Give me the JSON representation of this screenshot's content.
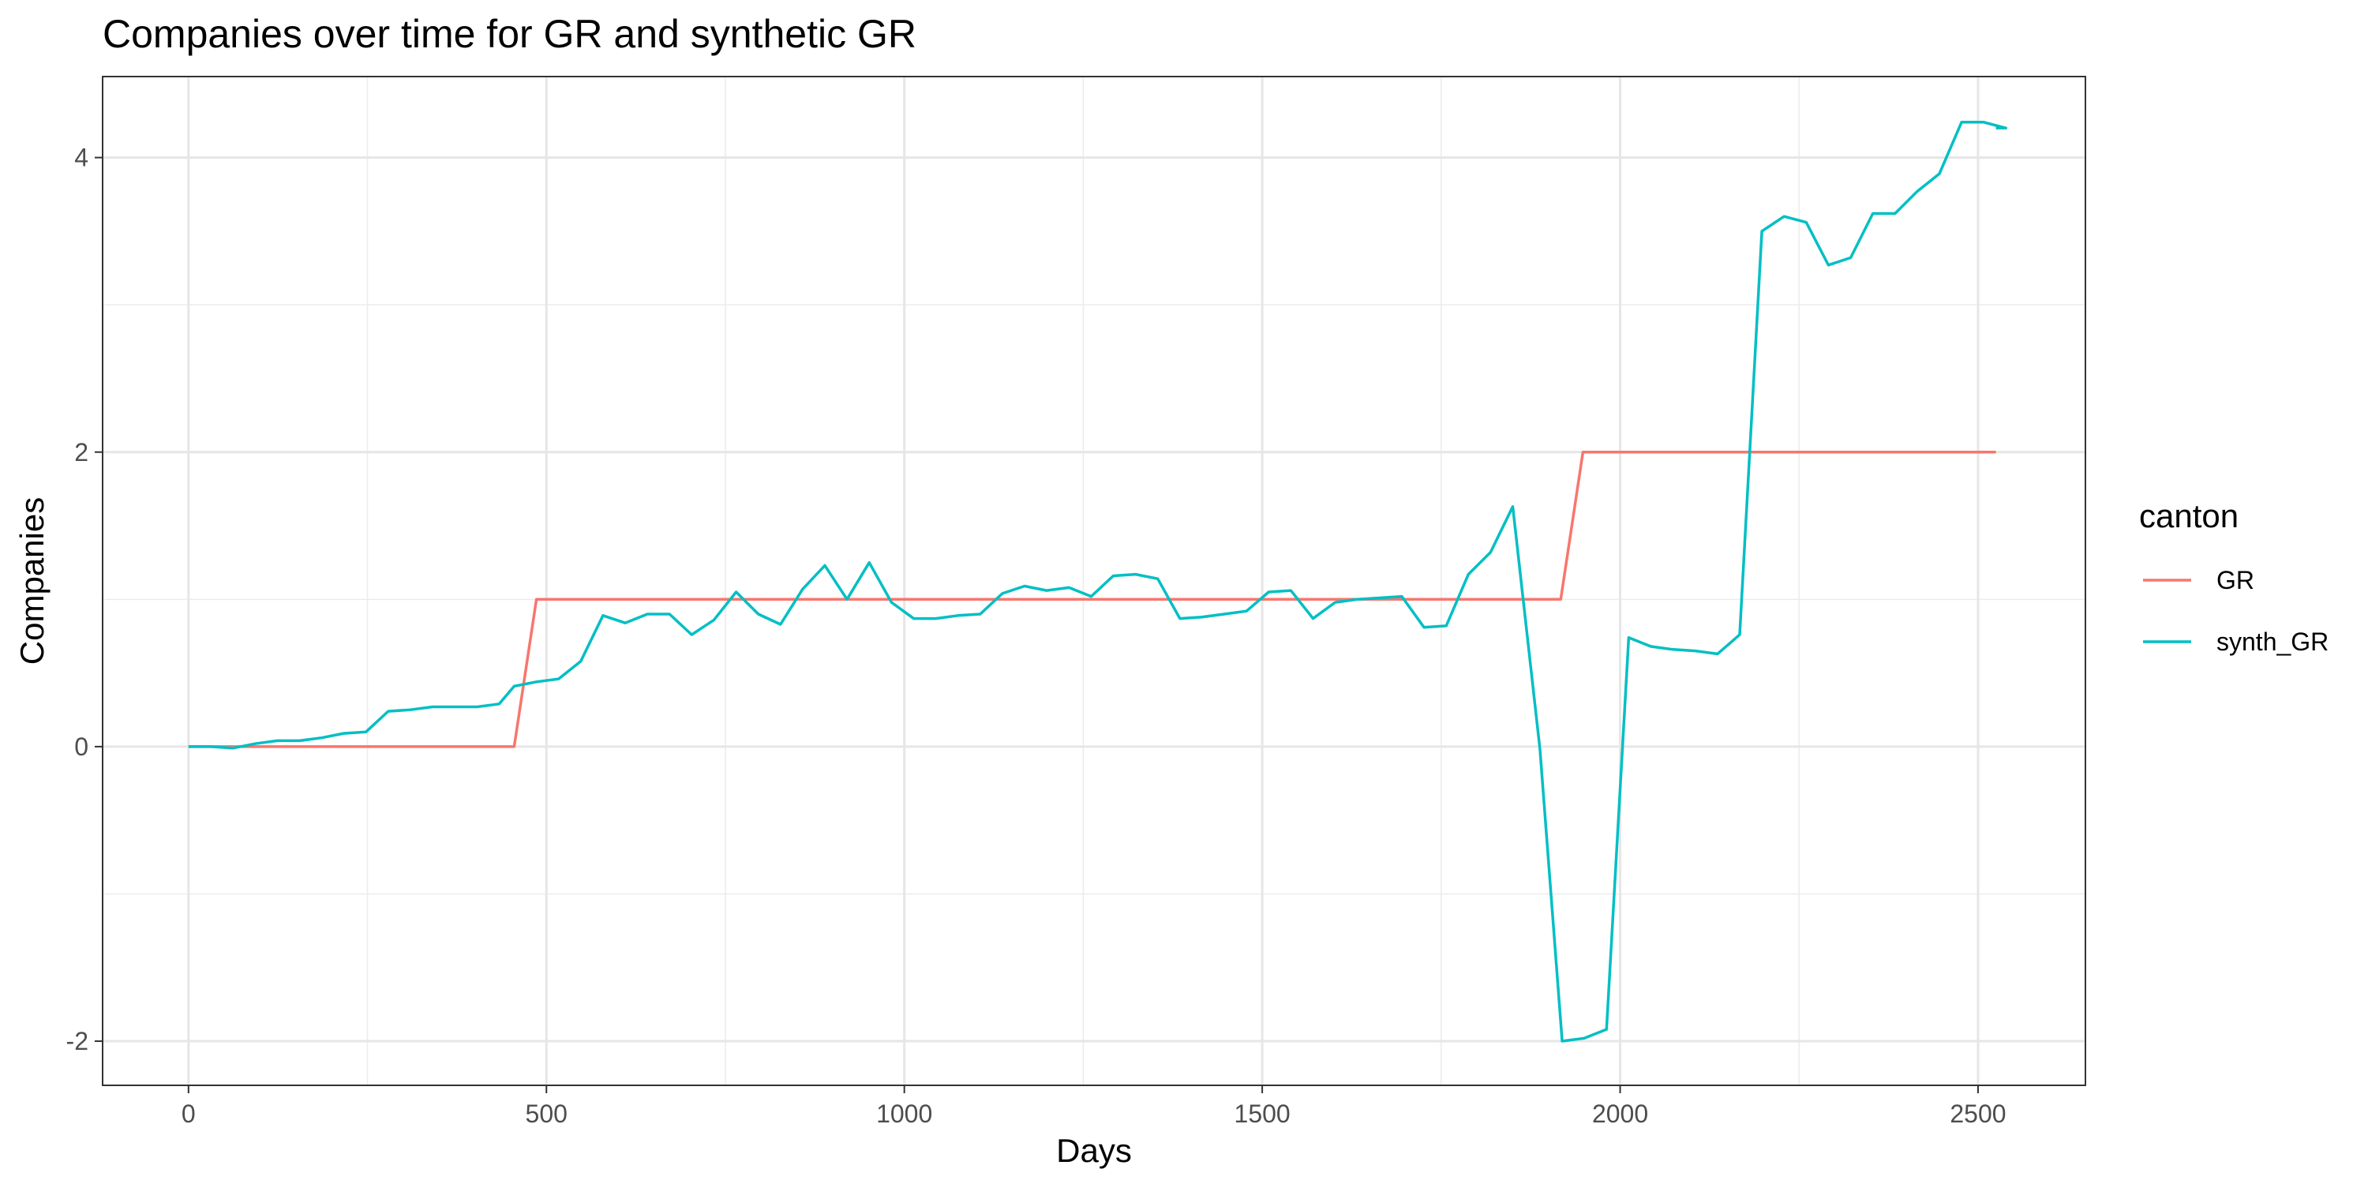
{
  "chart_data": {
    "type": "line",
    "title": "Companies over time for GR and synthetic GR",
    "xlabel": "Days",
    "ylabel": "Companies",
    "xlim": [
      -120,
      2650
    ],
    "ylim": [
      -2.3,
      4.55
    ],
    "x_ticks": [
      0,
      500,
      1000,
      1500,
      2000,
      2500
    ],
    "x_tick_labels": [
      "0",
      "500",
      "1000",
      "1500",
      "2000",
      "2500"
    ],
    "y_ticks": [
      -2,
      0,
      2,
      4
    ],
    "y_tick_labels": [
      "-2",
      "0",
      "2",
      "4"
    ],
    "x_minor_gridlines": [
      250,
      750,
      1250,
      1750,
      2250
    ],
    "y_minor_gridlines": [
      -1,
      1,
      3
    ],
    "grid": true,
    "legend": {
      "title": "canton",
      "position": "right"
    },
    "series": [
      {
        "name": "GR",
        "color": "#F8766D",
        "points": [
          [
            0,
            0
          ],
          [
            455,
            0
          ],
          [
            486,
            1
          ],
          [
            1917,
            1
          ],
          [
            1948,
            2
          ],
          [
            2525,
            2
          ]
        ]
      },
      {
        "name": "synth_GR",
        "color": "#00BFC4",
        "points": [
          [
            0,
            0
          ],
          [
            31,
            0
          ],
          [
            62,
            -0.01
          ],
          [
            93,
            0.02
          ],
          [
            124,
            0.04
          ],
          [
            155,
            0.04
          ],
          [
            186,
            0.06
          ],
          [
            217,
            0.09
          ],
          [
            248,
            0.1
          ],
          [
            279,
            0.24
          ],
          [
            310,
            0.25
          ],
          [
            341,
            0.27
          ],
          [
            372,
            0.27
          ],
          [
            403,
            0.27
          ],
          [
            434,
            0.29
          ],
          [
            455,
            0.41
          ],
          [
            486,
            0.44
          ],
          [
            517,
            0.46
          ],
          [
            548,
            0.58
          ],
          [
            579,
            0.89
          ],
          [
            610,
            0.84
          ],
          [
            641,
            0.9
          ],
          [
            672,
            0.9
          ],
          [
            703,
            0.76
          ],
          [
            734,
            0.86
          ],
          [
            765,
            1.05
          ],
          [
            796,
            0.9
          ],
          [
            827,
            0.83
          ],
          [
            858,
            1.07
          ],
          [
            889,
            1.23
          ],
          [
            920,
            1.0
          ],
          [
            951,
            1.25
          ],
          [
            982,
            0.98
          ],
          [
            1013,
            0.87
          ],
          [
            1044,
            0.87
          ],
          [
            1075,
            0.89
          ],
          [
            1106,
            0.9
          ],
          [
            1137,
            1.04
          ],
          [
            1168,
            1.09
          ],
          [
            1199,
            1.06
          ],
          [
            1230,
            1.08
          ],
          [
            1261,
            1.02
          ],
          [
            1292,
            1.16
          ],
          [
            1323,
            1.17
          ],
          [
            1354,
            1.14
          ],
          [
            1385,
            0.87
          ],
          [
            1416,
            0.88
          ],
          [
            1447,
            0.9
          ],
          [
            1478,
            0.92
          ],
          [
            1509,
            1.05
          ],
          [
            1540,
            1.06
          ],
          [
            1571,
            0.87
          ],
          [
            1602,
            0.98
          ],
          [
            1633,
            1.0
          ],
          [
            1664,
            1.01
          ],
          [
            1695,
            1.02
          ],
          [
            1726,
            0.81
          ],
          [
            1757,
            0.82
          ],
          [
            1788,
            1.17
          ],
          [
            1819,
            1.32
          ],
          [
            1850,
            1.63
          ],
          [
            1888,
            -0.02
          ],
          [
            1919,
            -2.0
          ],
          [
            1950,
            -1.98
          ],
          [
            1981,
            -1.92
          ],
          [
            2012,
            0.74
          ],
          [
            2043,
            0.68
          ],
          [
            2074,
            0.66
          ],
          [
            2105,
            0.65
          ],
          [
            2136,
            0.63
          ],
          [
            2167,
            0.76
          ],
          [
            2198,
            3.5
          ],
          [
            2229,
            3.6
          ],
          [
            2260,
            3.56
          ],
          [
            2291,
            3.27
          ],
          [
            2322,
            3.32
          ],
          [
            2353,
            3.62
          ],
          [
            2384,
            3.62
          ],
          [
            2415,
            3.77
          ],
          [
            2446,
            3.89
          ],
          [
            2477,
            4.24
          ],
          [
            2508,
            4.24
          ],
          [
            2539,
            4.2
          ],
          [
            2525,
            4.2
          ]
        ]
      }
    ]
  }
}
